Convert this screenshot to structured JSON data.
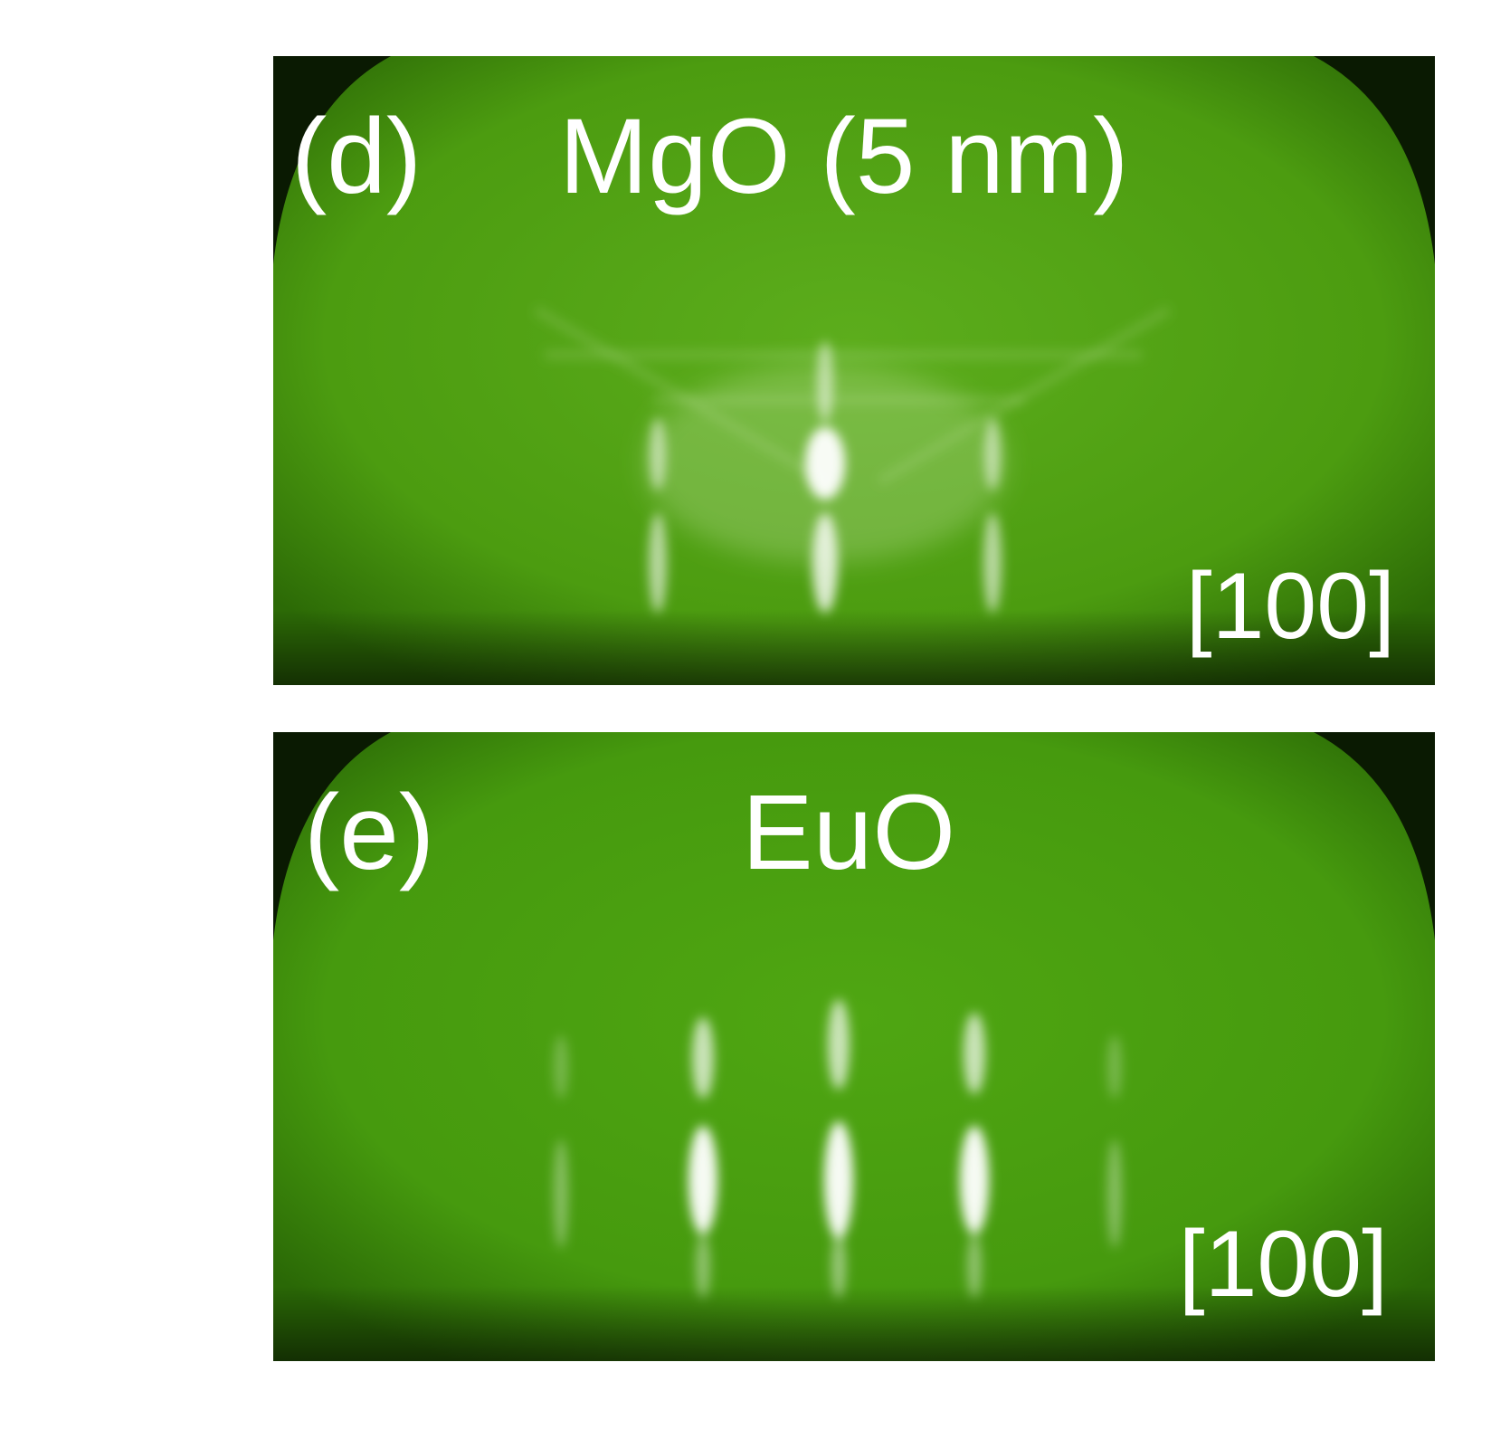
{
  "panels": [
    {
      "letter": "(d)",
      "title": "MgO (5 nm)",
      "direction": "[100]"
    },
    {
      "letter": "(e)",
      "title": "EuO",
      "direction": "[100]"
    }
  ],
  "colors": {
    "screen": "#4fa012",
    "streak": "#ffffff",
    "edge": "#000000"
  }
}
